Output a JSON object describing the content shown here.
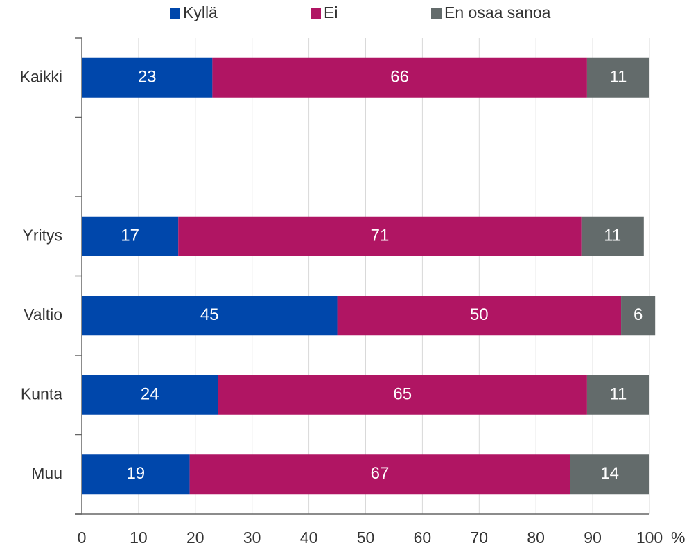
{
  "chart_data": {
    "type": "stacked-bar",
    "orientation": "horizontal",
    "categories": [
      "Kaikki",
      null,
      "Yritys",
      "Valtio",
      "Kunta",
      "Muu"
    ],
    "series": [
      {
        "name": "Kyllä",
        "color": "#0047ab",
        "values": [
          23,
          null,
          17,
          45,
          24,
          19
        ]
      },
      {
        "name": "Ei",
        "color": "#b01563",
        "values": [
          66,
          null,
          71,
          50,
          65,
          67
        ]
      },
      {
        "name": "En osaa sanoa",
        "color": "#636b6b",
        "values": [
          11,
          null,
          11,
          6,
          11,
          14
        ]
      }
    ],
    "xlabel": "%",
    "xlim": [
      0,
      100
    ],
    "xticks": [
      0,
      10,
      20,
      30,
      40,
      50,
      60,
      70,
      80,
      90,
      100
    ],
    "grid": true,
    "legend": "top"
  }
}
